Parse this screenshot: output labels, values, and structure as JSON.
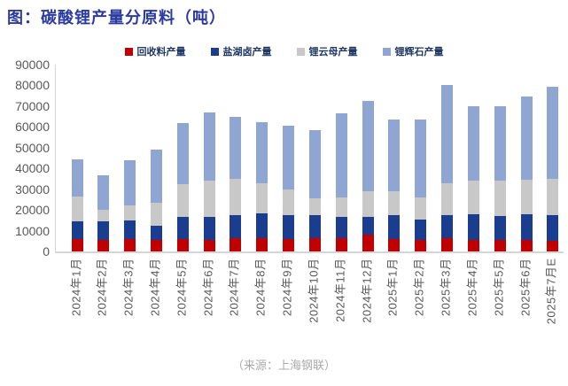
{
  "title": "图：碳酸锂产量分原料（吨）",
  "source": "（来源：上海钢联）",
  "colors": {
    "title_text": "#2B3A9E",
    "legend_text": "#203864",
    "axis_text": "#595959",
    "axis_line": "#D6D6D6",
    "source_text": "#A9A9A9",
    "recycled": "#C00000",
    "brine": "#1B3D8F",
    "lepidolite": "#C8C8C8",
    "spodumene": "#8FA6D2"
  },
  "chart_data": {
    "type": "bar",
    "stacked": true,
    "title": "图：碳酸锂产量分原料（吨）",
    "xlabel": "",
    "ylabel": "",
    "ylim": [
      0,
      90000
    ],
    "ytick_step": 10000,
    "grid": false,
    "legend_position": "top",
    "categories": [
      "2024年1月",
      "2024年2月",
      "2024年3月",
      "2024年4月",
      "2024年5月",
      "2024年6月",
      "2024年7月",
      "2024年8月",
      "2024年9月",
      "2024年10月",
      "2024年11月",
      "2024年12月",
      "2025年1月",
      "2025年2月",
      "2025年3月",
      "2025年4月",
      "2025年5月",
      "2025年6月",
      "2025年7月E"
    ],
    "series": [
      {
        "key": "recycled",
        "name": "回收料产量",
        "color": "#C00000",
        "values": [
          6000,
          5500,
          6000,
          5500,
          6000,
          5500,
          6500,
          6500,
          6000,
          6500,
          6500,
          8000,
          6000,
          5500,
          6500,
          5500,
          5500,
          5500,
          5000
        ]
      },
      {
        "key": "brine",
        "name": "盐湖卤产量",
        "color": "#1B3D8F",
        "values": [
          8500,
          9000,
          9000,
          7000,
          10500,
          11000,
          11000,
          12000,
          11500,
          11000,
          10000,
          8500,
          11500,
          10000,
          11000,
          12500,
          11500,
          12500,
          12500
        ]
      },
      {
        "key": "lepidolite",
        "name": "锂云母产量",
        "color": "#C8C8C8",
        "values": [
          12000,
          5500,
          7000,
          11000,
          16000,
          17500,
          17500,
          14500,
          12500,
          8000,
          9500,
          12500,
          11500,
          10500,
          15500,
          16000,
          17000,
          16500,
          17500
        ]
      },
      {
        "key": "spodumene",
        "name": "锂辉石产量",
        "color": "#8FA6D2",
        "values": [
          18000,
          16500,
          22000,
          25500,
          29500,
          33000,
          30000,
          29500,
          30500,
          33000,
          40500,
          43500,
          34500,
          37500,
          47000,
          36000,
          36000,
          40000,
          44500
        ]
      }
    ]
  }
}
